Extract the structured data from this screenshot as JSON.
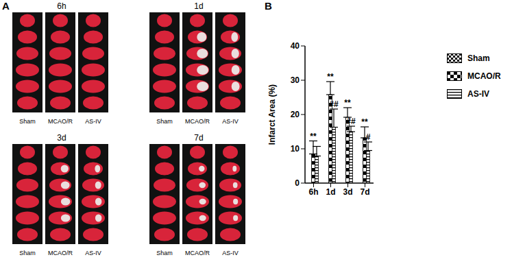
{
  "panel_labels": [
    "A",
    "B"
  ],
  "images": {
    "timepoints": [
      "6h",
      "1d",
      "3d",
      "7d"
    ],
    "groups": [
      "Sham",
      "MCAO/R",
      "AS-IV"
    ]
  },
  "chart_data": {
    "type": "bar",
    "y_label": "Infarct Area (%)",
    "categories": [
      "6h",
      "1d",
      "3d",
      "7d"
    ],
    "series": [
      {
        "name": "Sham",
        "color": "#000000",
        "values": [
          0,
          0,
          0,
          0
        ]
      },
      {
        "name": "MCAO/R",
        "color": "#000000",
        "values": [
          8.5,
          25.8,
          19.2,
          13.2
        ],
        "errors": [
          3.8,
          3.8,
          2.8,
          3.2
        ],
        "annotations": [
          "**",
          "**",
          "**",
          "**"
        ]
      },
      {
        "name": "AS-IV",
        "color": "#000000",
        "values": [
          7.9,
          16.3,
          15.0,
          9.5
        ],
        "errors": [
          2.8,
          5.3,
          1.6,
          2.5
        ],
        "annotations": [
          null,
          "##",
          "##",
          "#"
        ]
      }
    ],
    "ylim": [
      0,
      40
    ],
    "yticks": [
      0,
      10,
      20,
      30,
      40
    ],
    "grid": false,
    "legend": "right"
  }
}
